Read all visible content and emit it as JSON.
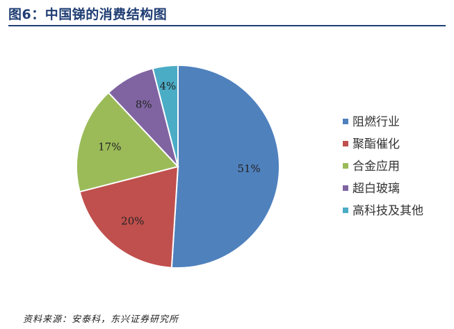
{
  "header": {
    "title": "图6：中国锑的消费结构图"
  },
  "footer": {
    "source": "资料来源：安泰科，东兴证券研究所"
  },
  "chart_data": {
    "type": "pie",
    "categories": [
      "阻燃行业",
      "聚酯催化",
      "合金应用",
      "超白玻璃",
      "高科技及其他"
    ],
    "values": [
      51,
      20,
      17,
      8,
      4
    ],
    "labels": [
      "51%",
      "20%",
      "17%",
      "8%",
      "4%"
    ],
    "colors": [
      "#4f81bd",
      "#c0504d",
      "#9bbb59",
      "#8064a2",
      "#4bacc6"
    ],
    "legend_position": "right",
    "start_angle": "12 o'clock",
    "direction": "clockwise"
  }
}
